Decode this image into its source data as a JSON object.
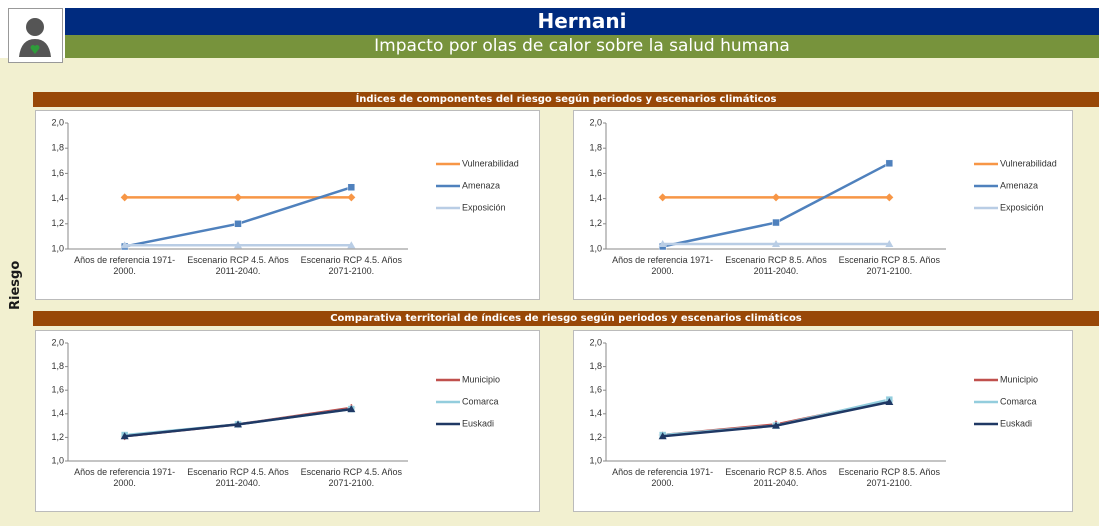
{
  "title": "Hernani",
  "subtitle": "Impacto por olas de calor sobre la salud humana",
  "side_label": "Riesgo",
  "sections": [
    "Índices de componentes del riesgo según periodos y escenarios climáticos",
    "Comparativa territorial de índices de riesgo según periodos y escenarios climáticos"
  ],
  "chart_data": [
    {
      "type": "line",
      "categories": [
        "Años de referencia 1971-2000.",
        "Escenario RCP 4.5. Años 2011-2040.",
        "Escenario RCP 4.5. Años 2071-2100."
      ],
      "series": [
        {
          "name": "Vulnerabilidad",
          "color": "#f79646",
          "values": [
            1.41,
            1.41,
            1.41
          ]
        },
        {
          "name": "Amenaza",
          "color": "#4f81bd",
          "values": [
            1.02,
            1.2,
            1.49
          ]
        },
        {
          "name": "Exposición",
          "color": "#b9cde5",
          "values": [
            1.03,
            1.03,
            1.03
          ]
        }
      ],
      "ylim": [
        1,
        2
      ],
      "yticks": [
        {
          "value": 1,
          "label": "1,0"
        },
        {
          "value": 1.2,
          "label": "1,2"
        },
        {
          "value": 1.4,
          "label": "1,4"
        },
        {
          "value": 1.6,
          "label": "1,6"
        },
        {
          "value": 1.8,
          "label": "1,8"
        },
        {
          "value": 2,
          "label": "2,0"
        }
      ],
      "legend": "right"
    },
    {
      "type": "line",
      "categories": [
        "Años de referencia 1971-2000.",
        "Escenario RCP 8.5. Años 2011-2040.",
        "Escenario RCP 8.5. Años 2071-2100."
      ],
      "series": [
        {
          "name": "Vulnerabilidad",
          "color": "#f79646",
          "values": [
            1.41,
            1.41,
            1.41
          ]
        },
        {
          "name": "Amenaza",
          "color": "#4f81bd",
          "values": [
            1.02,
            1.21,
            1.68
          ]
        },
        {
          "name": "Exposición",
          "color": "#b9cde5",
          "values": [
            1.04,
            1.04,
            1.04
          ]
        }
      ],
      "ylim": [
        1,
        2
      ],
      "yticks": [
        {
          "value": 1,
          "label": "1,0"
        },
        {
          "value": 1.2,
          "label": "1,2"
        },
        {
          "value": 1.4,
          "label": "1,4"
        },
        {
          "value": 1.6,
          "label": "1,6"
        },
        {
          "value": 1.8,
          "label": "1,8"
        },
        {
          "value": 2,
          "label": "2,0"
        }
      ],
      "legend": "right"
    },
    {
      "type": "line",
      "categories": [
        "Años de referencia 1971-2000.",
        "Escenario RCP 4.5. Años 2011-2040.",
        "Escenario RCP 4.5. Años 2071-2100."
      ],
      "series": [
        {
          "name": "Municipio",
          "color": "#c0504d",
          "values": [
            1.21,
            1.31,
            1.45
          ]
        },
        {
          "name": "Comarca",
          "color": "#93cddd",
          "values": [
            1.22,
            1.31,
            1.44
          ]
        },
        {
          "name": "Euskadi",
          "color": "#1f3864",
          "values": [
            1.21,
            1.31,
            1.44
          ]
        }
      ],
      "ylim": [
        1,
        2
      ],
      "yticks": [
        {
          "value": 1,
          "label": "1,0"
        },
        {
          "value": 1.2,
          "label": "1,2"
        },
        {
          "value": 1.4,
          "label": "1,4"
        },
        {
          "value": 1.6,
          "label": "1,6"
        },
        {
          "value": 1.8,
          "label": "1,8"
        },
        {
          "value": 2,
          "label": "2,0"
        }
      ],
      "legend": "right"
    },
    {
      "type": "line",
      "categories": [
        "Años de referencia 1971-2000.",
        "Escenario RCP 8.5. Años 2011-2040.",
        "Escenario RCP 8.5. Años 2071-2100."
      ],
      "series": [
        {
          "name": "Municipio",
          "color": "#c0504d",
          "values": [
            1.22,
            1.31,
            1.51
          ]
        },
        {
          "name": "Comarca",
          "color": "#93cddd",
          "values": [
            1.22,
            1.3,
            1.52
          ]
        },
        {
          "name": "Euskadi",
          "color": "#1f3864",
          "values": [
            1.21,
            1.3,
            1.5
          ]
        }
      ],
      "ylim": [
        1,
        2
      ],
      "yticks": [
        {
          "value": 1,
          "label": "1,0"
        },
        {
          "value": 1.2,
          "label": "1,2"
        },
        {
          "value": 1.4,
          "label": "1,4"
        },
        {
          "value": 1.6,
          "label": "1,6"
        },
        {
          "value": 1.8,
          "label": "1,8"
        },
        {
          "value": 2,
          "label": "2,0"
        }
      ],
      "legend": "right"
    }
  ]
}
